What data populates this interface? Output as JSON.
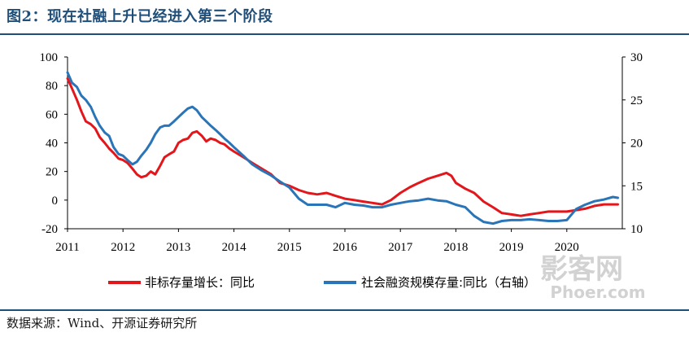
{
  "figure_title": "图2：现在社融上升已经进入第三个阶段",
  "source": "数据来源：Wind、开源证券研究所",
  "watermark": {
    "line1": "影客网",
    "line2": "Phoer.com"
  },
  "colors": {
    "series1": "#e3161b",
    "series2": "#2a75b8",
    "title": "#1f4e79"
  },
  "chart_data": {
    "type": "line",
    "title": "",
    "xlabel": "",
    "ylabel": "",
    "y2label": "",
    "grid": false,
    "legend_position": "bottom",
    "xlim": [
      2011,
      2021
    ],
    "ylim": [
      -20,
      100
    ],
    "y2lim": [
      10,
      30
    ],
    "x_ticks": [
      "2011",
      "2012",
      "2013",
      "2014",
      "2015",
      "2016",
      "2017",
      "2018",
      "2019",
      "2020"
    ],
    "y_ticks": [
      "100",
      "80",
      "60",
      "40",
      "20",
      "0",
      "-20"
    ],
    "y2_ticks": [
      "30",
      "25",
      "20",
      "15",
      "10"
    ],
    "series": [
      {
        "name": "非标存量增长：同比",
        "axis": "left",
        "x": [
          2011.0,
          2011.08,
          2011.17,
          2011.25,
          2011.33,
          2011.42,
          2011.5,
          2011.58,
          2011.67,
          2011.75,
          2011.83,
          2011.92,
          2012.0,
          2012.08,
          2012.17,
          2012.25,
          2012.33,
          2012.42,
          2012.5,
          2012.58,
          2012.67,
          2012.75,
          2012.83,
          2012.92,
          2013.0,
          2013.08,
          2013.17,
          2013.25,
          2013.33,
          2013.42,
          2013.5,
          2013.58,
          2013.67,
          2013.75,
          2013.83,
          2013.92,
          2014.0,
          2014.17,
          2014.33,
          2014.5,
          2014.67,
          2014.83,
          2015.0,
          2015.17,
          2015.33,
          2015.5,
          2015.67,
          2015.83,
          2016.0,
          2016.17,
          2016.33,
          2016.5,
          2016.67,
          2016.83,
          2017.0,
          2017.17,
          2017.33,
          2017.5,
          2017.67,
          2017.75,
          2017.83,
          2017.92,
          2018.0,
          2018.17,
          2018.33,
          2018.5,
          2018.67,
          2018.83,
          2019.0,
          2019.17,
          2019.33,
          2019.5,
          2019.67,
          2019.83,
          2020.0,
          2020.17,
          2020.33,
          2020.5,
          2020.67,
          2020.83,
          2020.92
        ],
        "y": [
          85,
          78,
          70,
          62,
          55,
          53,
          50,
          44,
          40,
          36,
          33,
          29,
          28,
          26,
          22,
          18,
          16,
          17,
          20,
          18,
          24,
          30,
          32,
          34,
          40,
          42,
          43,
          47,
          48,
          45,
          41,
          43,
          42,
          40,
          39,
          36,
          34,
          30,
          26,
          22,
          18,
          12,
          10,
          7,
          5,
          4,
          5,
          3,
          1,
          0,
          -1,
          -2,
          -3,
          0,
          5,
          9,
          12,
          15,
          17,
          18,
          19,
          17,
          12,
          8,
          5,
          -1,
          -5,
          -9,
          -10,
          -11,
          -10,
          -9,
          -8,
          -8,
          -8,
          -7,
          -6,
          -4,
          -3,
          -3,
          -3
        ]
      },
      {
        "name": "社会融资规模存量:同比（右轴）",
        "axis": "right",
        "x": [
          2011.0,
          2011.08,
          2011.17,
          2011.25,
          2011.33,
          2011.42,
          2011.5,
          2011.58,
          2011.67,
          2011.75,
          2011.83,
          2011.92,
          2012.0,
          2012.08,
          2012.17,
          2012.25,
          2012.33,
          2012.42,
          2012.5,
          2012.58,
          2012.67,
          2012.75,
          2012.83,
          2012.92,
          2013.0,
          2013.08,
          2013.17,
          2013.25,
          2013.33,
          2013.42,
          2013.5,
          2013.58,
          2013.67,
          2013.75,
          2013.83,
          2013.92,
          2014.0,
          2014.17,
          2014.33,
          2014.5,
          2014.67,
          2014.83,
          2015.0,
          2015.17,
          2015.33,
          2015.5,
          2015.67,
          2015.83,
          2016.0,
          2016.17,
          2016.33,
          2016.5,
          2016.67,
          2016.83,
          2017.0,
          2017.17,
          2017.33,
          2017.5,
          2017.67,
          2017.83,
          2018.0,
          2018.17,
          2018.33,
          2018.5,
          2018.67,
          2018.83,
          2019.0,
          2019.17,
          2019.33,
          2019.5,
          2019.67,
          2019.83,
          2020.0,
          2020.17,
          2020.33,
          2020.5,
          2020.67,
          2020.83,
          2020.92
        ],
        "y": [
          28.2,
          27.0,
          26.5,
          25.5,
          25.0,
          24.2,
          23.0,
          22.0,
          21.2,
          20.8,
          19.5,
          18.7,
          18.5,
          18.0,
          17.5,
          17.8,
          18.5,
          19.2,
          20.0,
          21.0,
          21.8,
          22.0,
          22.0,
          22.5,
          23.0,
          23.5,
          24.0,
          24.2,
          23.8,
          23.0,
          22.5,
          22.0,
          21.5,
          21.0,
          20.5,
          20.0,
          19.5,
          18.5,
          17.5,
          16.8,
          16.2,
          15.5,
          14.8,
          13.5,
          12.8,
          12.8,
          12.8,
          12.5,
          13.0,
          12.8,
          12.7,
          12.5,
          12.5,
          12.8,
          13.0,
          13.2,
          13.3,
          13.5,
          13.3,
          13.2,
          12.8,
          12.5,
          11.5,
          10.8,
          10.6,
          10.9,
          11.0,
          11.0,
          11.1,
          11.0,
          10.9,
          10.9,
          11.0,
          12.3,
          12.8,
          13.2,
          13.4,
          13.7,
          13.6
        ]
      }
    ]
  }
}
